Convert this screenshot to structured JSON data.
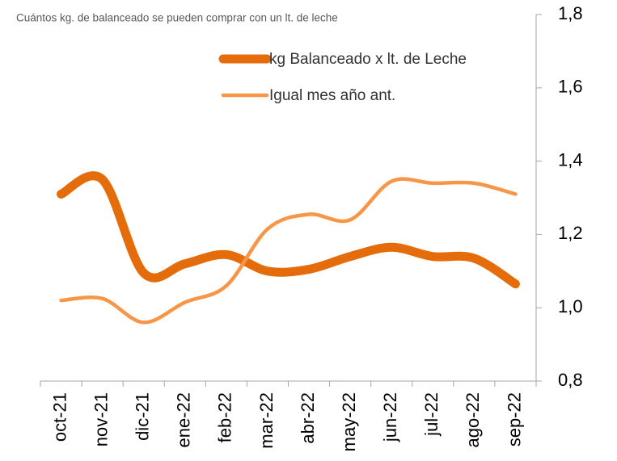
{
  "chart_data": {
    "type": "line",
    "title": "Cuántos kg. de balanceado se pueden comprar con un lt. de leche",
    "categories": [
      "oct-21",
      "nov-21",
      "dic-21",
      "ene-22",
      "feb-22",
      "mar-22",
      "abr-22",
      "may-22",
      "jun-22",
      "jul-22",
      "ago-22",
      "sep-22"
    ],
    "series": [
      {
        "name": "kg Balanceado x lt. de Leche",
        "color": "#e46c0a",
        "width": 11,
        "values": [
          1.31,
          1.35,
          1.095,
          1.12,
          1.145,
          1.1,
          1.105,
          1.14,
          1.165,
          1.14,
          1.135,
          1.065
        ]
      },
      {
        "name": "Igual mes año ant.",
        "color": "#f79646",
        "width": 4.5,
        "values": [
          1.02,
          1.025,
          0.96,
          1.015,
          1.06,
          1.215,
          1.255,
          1.24,
          1.345,
          1.34,
          1.34,
          1.31
        ]
      }
    ],
    "ylim": [
      0.8,
      1.8
    ],
    "yticks": [
      {
        "value": 0.8,
        "label": "0,8"
      },
      {
        "value": 1.0,
        "label": "1,0"
      },
      {
        "value": 1.2,
        "label": "1,2"
      },
      {
        "value": 1.4,
        "label": "1,4"
      },
      {
        "value": 1.6,
        "label": "1,6"
      },
      {
        "value": 1.8,
        "label": "1,8"
      }
    ],
    "smooth": true
  }
}
